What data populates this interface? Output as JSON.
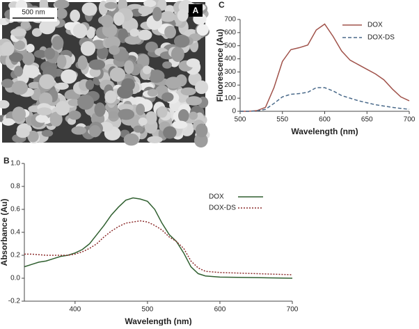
{
  "panel_a": {
    "label": "A",
    "scale_bar": "500 nm"
  },
  "chart_data": [
    {
      "type": "line",
      "panel_label": "B",
      "x_label": "Wavelength (nm)",
      "y_label": "Absorbance (Au)",
      "x": [
        330,
        340,
        350,
        360,
        370,
        380,
        390,
        400,
        410,
        420,
        430,
        440,
        450,
        460,
        470,
        480,
        490,
        500,
        510,
        520,
        530,
        540,
        550,
        560,
        570,
        580,
        600,
        650,
        700
      ],
      "series": [
        {
          "name": "DOX",
          "color": "#2f5f2f",
          "linestyle": "solid",
          "values": [
            0.1,
            0.12,
            0.14,
            0.15,
            0.17,
            0.19,
            0.2,
            0.22,
            0.25,
            0.3,
            0.38,
            0.46,
            0.55,
            0.62,
            0.68,
            0.7,
            0.69,
            0.67,
            0.6,
            0.48,
            0.38,
            0.32,
            0.22,
            0.1,
            0.04,
            0.02,
            0.01,
            0.005,
            0.0
          ]
        },
        {
          "name": "DOX-DS",
          "color": "#8b2a2a",
          "linestyle": "dotted",
          "values": [
            0.21,
            0.21,
            0.205,
            0.2,
            0.2,
            0.2,
            0.2,
            0.21,
            0.23,
            0.26,
            0.3,
            0.36,
            0.41,
            0.45,
            0.48,
            0.49,
            0.5,
            0.49,
            0.46,
            0.42,
            0.36,
            0.32,
            0.26,
            0.15,
            0.09,
            0.06,
            0.05,
            0.04,
            0.03
          ]
        }
      ],
      "xlim": [
        330,
        700
      ],
      "xticks": [
        400,
        500,
        600,
        700
      ],
      "ylim": [
        -0.2,
        1.0
      ],
      "yticks": [
        {
          "value": -0.2,
          "label": "-0.2"
        },
        {
          "value": 0,
          "label": "0.0"
        },
        {
          "value": 0.2,
          "label": "0.2"
        },
        {
          "value": 0.4,
          "label": "0.4"
        },
        {
          "value": 0.6,
          "label": "0.6"
        },
        {
          "value": 0.8,
          "label": "0.8"
        },
        {
          "value": 1.0,
          "label": "1.0"
        }
      ],
      "legend": "right",
      "grid": false
    },
    {
      "type": "line",
      "panel_label": "C",
      "x_label": "Wavelength  (nm)",
      "y_label": "Fluorescence (Au)",
      "x": [
        500,
        510,
        520,
        530,
        540,
        550,
        560,
        570,
        580,
        590,
        600,
        610,
        620,
        630,
        640,
        650,
        660,
        670,
        680,
        690,
        700
      ],
      "series": [
        {
          "name": "DOX",
          "color": "#a0524a",
          "linestyle": "solid",
          "values": [
            0,
            0,
            5,
            30,
            180,
            380,
            470,
            485,
            505,
            620,
            665,
            570,
            460,
            390,
            355,
            320,
            285,
            240,
            170,
            110,
            80
          ]
        },
        {
          "name": "DOX-DS",
          "color": "#4a6a8a",
          "linestyle": "dashed",
          "values": [
            0,
            0,
            3,
            15,
            60,
            110,
            130,
            135,
            145,
            180,
            180,
            155,
            120,
            100,
            80,
            65,
            50,
            40,
            30,
            22,
            15
          ]
        }
      ],
      "xlim": [
        500,
        700
      ],
      "xticks": [
        500,
        550,
        600,
        650,
        700
      ],
      "ylim": [
        0,
        700
      ],
      "yticks": [
        0,
        100,
        200,
        300,
        400,
        500,
        600,
        700
      ],
      "legend": "upper right",
      "grid": false
    }
  ]
}
